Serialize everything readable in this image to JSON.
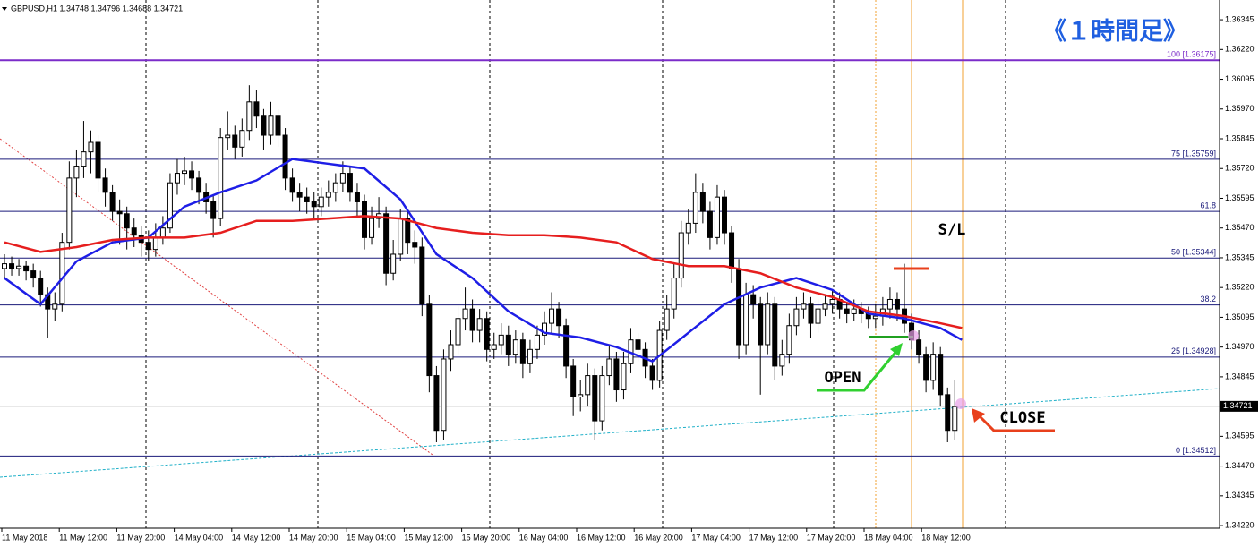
{
  "chart_data": {
    "type": "candlestick",
    "title": "GBPUSD,H1  1.34748 1.34796 1.34688 1.34721",
    "heading": "《１時間足》",
    "annotations": {
      "sl": "S/L",
      "open": "OPEN",
      "close": "CLOSE"
    },
    "categories": [
      "11 May 2018",
      "11 May 12:00",
      "11 May 20:00",
      "14 May 04:00",
      "14 May 12:00",
      "14 May 20:00",
      "15 May 04:00",
      "15 May 12:00",
      "15 May 20:00",
      "16 May 04:00",
      "16 May 12:00",
      "16 May 20:00",
      "17 May 04:00",
      "17 May 12:00",
      "17 May 20:00",
      "18 May 04:00",
      "18 May 12:00"
    ],
    "ylim": [
      1.34209,
      1.36428
    ],
    "yticks": [
      1.36345,
      {
        "value": 1.3622,
        "label": "1.36220"
      },
      1.36095,
      {
        "value": 1.3597,
        "label": "1.35970"
      },
      1.35845,
      {
        "value": 1.3572,
        "label": "1.35720"
      },
      1.35595,
      {
        "value": 1.3547,
        "label": "1.35470"
      },
      1.35345,
      {
        "value": 1.3522,
        "label": "1.35220"
      },
      1.35095,
      {
        "value": 1.3497,
        "label": "1.34970"
      },
      1.34845,
      {
        "value": 1.3472,
        "label": "1.34720"
      },
      1.34595,
      {
        "value": 1.3447,
        "label": "1.34470"
      },
      1.34345,
      {
        "value": 1.3422,
        "label": "1.34220"
      }
    ],
    "current_price": 1.34721,
    "bull_color": "#ffffff",
    "bear_color": "#000000",
    "open": [
      1.353,
      1.3532,
      1.353,
      1.3531,
      1.3529,
      1.3526,
      1.3519,
      1.3513,
      1.3515,
      1.3541,
      1.3568,
      1.3573,
      1.3579,
      1.3583,
      1.3568,
      1.3562,
      1.3554,
      1.3553,
      1.3547,
      1.3544,
      1.3541,
      1.3538,
      1.3543,
      1.3547,
      1.3566,
      1.357,
      1.3571,
      1.3568,
      1.3562,
      1.3558,
      1.3551,
      1.3585,
      1.3586,
      1.3581,
      1.3588,
      1.36,
      1.3594,
      1.3586,
      1.3594,
      1.3586,
      1.3568,
      1.3562,
      1.356,
      1.3558,
      1.3556,
      1.356,
      1.3562,
      1.3566,
      1.357,
      1.3562,
      1.3558,
      1.3543,
      1.3551,
      1.3553,
      1.3528,
      1.3536,
      1.3551,
      1.3541,
      1.3539,
      1.3515,
      1.3485,
      1.3462,
      1.3492,
      1.3498,
      1.3509,
      1.3513,
      1.3504,
      1.3509,
      1.3496,
      1.3498,
      1.3502,
      1.3494,
      1.35,
      1.349,
      1.3496,
      1.3502,
      1.3507,
      1.3513,
      1.3506,
      1.3489,
      1.3476,
      1.3477,
      1.3485,
      1.3466,
      1.3485,
      1.3492,
      1.3479,
      1.349,
      1.35,
      1.3496,
      1.3489,
      1.3483,
      1.3504,
      1.3513,
      1.3526,
      1.3545,
      1.3549,
      1.3562,
      1.3554,
      1.3543,
      1.356,
      1.3545,
      1.353,
      1.3498,
      1.3519,
      1.3515,
      1.3498,
      1.3515,
      1.3489,
      1.3494,
      1.3506,
      1.3513,
      1.3515,
      1.3507,
      1.3513,
      1.3515,
      1.3517,
      1.3513,
      1.3511,
      1.3513,
      1.3511,
      1.3509,
      1.351,
      1.3513,
      1.3517,
      1.3513,
      1.3507,
      1.35,
      1.3494,
      1.3483,
      1.3494,
      1.3477,
      1.3462
    ],
    "high": [
      1.3536,
      1.3535,
      1.3534,
      1.3533,
      1.3532,
      1.3529,
      1.3522,
      1.352,
      1.3545,
      1.3575,
      1.358,
      1.3592,
      1.3588,
      1.3586,
      1.3572,
      1.3565,
      1.3559,
      1.3556,
      1.3551,
      1.3548,
      1.3546,
      1.3549,
      1.3552,
      1.357,
      1.3576,
      1.3577,
      1.3575,
      1.3571,
      1.3566,
      1.3561,
      1.3589,
      1.3596,
      1.359,
      1.3593,
      1.3607,
      1.3605,
      1.3597,
      1.36,
      1.3597,
      1.3589,
      1.3572,
      1.3566,
      1.3564,
      1.3562,
      1.3564,
      1.3567,
      1.357,
      1.3575,
      1.3573,
      1.3566,
      1.3561,
      1.3556,
      1.356,
      1.3556,
      1.3542,
      1.3555,
      1.3554,
      1.3546,
      1.3543,
      1.3519,
      1.3489,
      1.3496,
      1.3504,
      1.3514,
      1.3522,
      1.3517,
      1.3513,
      1.3512,
      1.3503,
      1.3507,
      1.3506,
      1.3504,
      1.3503,
      1.35,
      1.3506,
      1.3512,
      1.352,
      1.3516,
      1.3509,
      1.3492,
      1.3483,
      1.349,
      1.3488,
      1.3489,
      1.3498,
      1.3495,
      1.3495,
      1.3505,
      1.3503,
      1.3499,
      1.3492,
      1.3508,
      1.3519,
      1.3532,
      1.355,
      1.3555,
      1.357,
      1.3566,
      1.3558,
      1.3565,
      1.3563,
      1.3548,
      1.3534,
      1.3524,
      1.3523,
      1.3518,
      1.352,
      1.3518,
      1.35,
      1.3511,
      1.3518,
      1.352,
      1.3518,
      1.3517,
      1.3519,
      1.3521,
      1.352,
      1.3516,
      1.3517,
      1.3516,
      1.3514,
      1.3515,
      1.3518,
      1.3522,
      1.352,
      1.3532,
      1.3511,
      1.3504,
      1.3497,
      1.3499,
      1.3497,
      1.348,
      1.3483
    ],
    "low": [
      1.3526,
      1.3527,
      1.3527,
      1.3525,
      1.3522,
      1.3514,
      1.3501,
      1.3508,
      1.3512,
      1.3538,
      1.356,
      1.3568,
      1.357,
      1.3562,
      1.3556,
      1.355,
      1.354,
      1.3538,
      1.3539,
      1.3535,
      1.3533,
      1.3535,
      1.354,
      1.3545,
      1.3561,
      1.3565,
      1.3563,
      1.3557,
      1.3553,
      1.3543,
      1.3548,
      1.358,
      1.3576,
      1.3577,
      1.3584,
      1.3589,
      1.358,
      1.3582,
      1.3581,
      1.3563,
      1.3558,
      1.3554,
      1.3553,
      1.3551,
      1.3552,
      1.3556,
      1.3558,
      1.3562,
      1.3558,
      1.3552,
      1.3538,
      1.354,
      1.3547,
      1.3523,
      1.3525,
      1.3533,
      1.3536,
      1.3532,
      1.351,
      1.3478,
      1.3457,
      1.3458,
      1.3487,
      1.3494,
      1.3504,
      1.3499,
      1.3499,
      1.3491,
      1.3492,
      1.3494,
      1.3489,
      1.349,
      1.3484,
      1.3486,
      1.3492,
      1.3498,
      1.3503,
      1.3501,
      1.3484,
      1.3468,
      1.347,
      1.3472,
      1.3458,
      1.3462,
      1.3481,
      1.3474,
      1.3475,
      1.3486,
      1.3491,
      1.3484,
      1.3479,
      1.348,
      1.35,
      1.3509,
      1.3522,
      1.354,
      1.3545,
      1.3549,
      1.3538,
      1.354,
      1.354,
      1.3524,
      1.3492,
      1.3494,
      1.3509,
      1.3477,
      1.3494,
      1.3483,
      1.3485,
      1.349,
      1.3502,
      1.3509,
      1.3501,
      1.3503,
      1.351,
      1.3511,
      1.3509,
      1.3507,
      1.3508,
      1.3507,
      1.3505,
      1.3505,
      1.3506,
      1.3509,
      1.3508,
      1.3503,
      1.3496,
      1.349,
      1.3478,
      1.3479,
      1.3472,
      1.3457,
      1.3458
    ],
    "close": [
      1.3532,
      1.353,
      1.3531,
      1.3529,
      1.3526,
      1.3519,
      1.3513,
      1.3515,
      1.3541,
      1.3568,
      1.3573,
      1.3579,
      1.3583,
      1.3568,
      1.3562,
      1.3554,
      1.3553,
      1.3547,
      1.3544,
      1.3541,
      1.3538,
      1.3543,
      1.3547,
      1.3566,
      1.357,
      1.3571,
      1.3568,
      1.3562,
      1.3558,
      1.3551,
      1.3585,
      1.3586,
      1.3581,
      1.3588,
      1.36,
      1.3594,
      1.3586,
      1.3594,
      1.3586,
      1.3568,
      1.3562,
      1.356,
      1.3558,
      1.3556,
      1.356,
      1.3562,
      1.3566,
      1.357,
      1.3562,
      1.3558,
      1.3543,
      1.3551,
      1.3553,
      1.3528,
      1.3536,
      1.3551,
      1.3541,
      1.3539,
      1.3515,
      1.3485,
      1.3462,
      1.3492,
      1.3498,
      1.3509,
      1.3513,
      1.3504,
      1.3509,
      1.3496,
      1.3498,
      1.3502,
      1.3494,
      1.35,
      1.349,
      1.3496,
      1.3502,
      1.3507,
      1.3513,
      1.3506,
      1.3489,
      1.3476,
      1.3477,
      1.3485,
      1.3466,
      1.3485,
      1.3492,
      1.3479,
      1.349,
      1.35,
      1.3496,
      1.3489,
      1.3483,
      1.3504,
      1.3513,
      1.3526,
      1.3545,
      1.3549,
      1.3562,
      1.3554,
      1.3543,
      1.356,
      1.3545,
      1.353,
      1.3498,
      1.3519,
      1.3515,
      1.3498,
      1.3515,
      1.3489,
      1.3494,
      1.3506,
      1.3513,
      1.3515,
      1.3507,
      1.3513,
      1.3515,
      1.3517,
      1.3513,
      1.3511,
      1.3513,
      1.3511,
      1.3509,
      1.351,
      1.3513,
      1.3517,
      1.3513,
      1.3507,
      1.35,
      1.3494,
      1.3483,
      1.3494,
      1.3477,
      1.3462,
      1.3472
    ],
    "moving_averages": [
      {
        "color": "#1e1ee6",
        "x": [
          0,
          5,
          10,
          15,
          20,
          25,
          30,
          35,
          40,
          45,
          50,
          55,
          60,
          65,
          70,
          75,
          80,
          85,
          90,
          95,
          100,
          105,
          110,
          115,
          120,
          125,
          130,
          133
        ],
        "values": [
          1.3526,
          1.3515,
          1.3533,
          1.3541,
          1.3543,
          1.3556,
          1.3562,
          1.3567,
          1.3576,
          1.3574,
          1.3572,
          1.3559,
          1.3536,
          1.3526,
          1.3512,
          1.3503,
          1.3501,
          1.3497,
          1.3491,
          1.3503,
          1.3515,
          1.3522,
          1.3526,
          1.3521,
          1.3511,
          1.3509,
          1.3505,
          1.35
        ]
      },
      {
        "color": "#e61e1e",
        "x": [
          0,
          5,
          10,
          15,
          20,
          25,
          30,
          35,
          40,
          45,
          50,
          55,
          60,
          65,
          70,
          75,
          80,
          85,
          90,
          95,
          100,
          105,
          110,
          115,
          120,
          125,
          130,
          133
        ],
        "values": [
          1.3541,
          1.3537,
          1.3539,
          1.3542,
          1.3543,
          1.3543,
          1.3545,
          1.355,
          1.355,
          1.3551,
          1.3552,
          1.3551,
          1.3547,
          1.3545,
          1.3544,
          1.3544,
          1.3543,
          1.3541,
          1.3534,
          1.3531,
          1.3531,
          1.3528,
          1.3522,
          1.3518,
          1.3512,
          1.351,
          1.3507,
          1.3505
        ]
      }
    ],
    "fib_levels": [
      {
        "label": "100 [1.36175]",
        "value": 1.36175,
        "color": "#7b2cc9"
      },
      {
        "label": "75 [1.35759]",
        "value": 1.35759,
        "color": "#1a1a7a"
      },
      {
        "label": "61.8",
        "value": 1.3554,
        "color": "#1a1a7a"
      },
      {
        "label": "50 [1.35344]",
        "value": 1.35344,
        "color": "#1a1a7a"
      },
      {
        "label": "38.2",
        "value": 1.35147,
        "color": "#1a1a7a"
      },
      {
        "label": "25 [1.34928]",
        "value": 1.34928,
        "color": "#1a1a7a"
      },
      {
        "label": "0 [1.34512]",
        "value": 1.34512,
        "color": "#1a1a7a"
      }
    ]
  }
}
